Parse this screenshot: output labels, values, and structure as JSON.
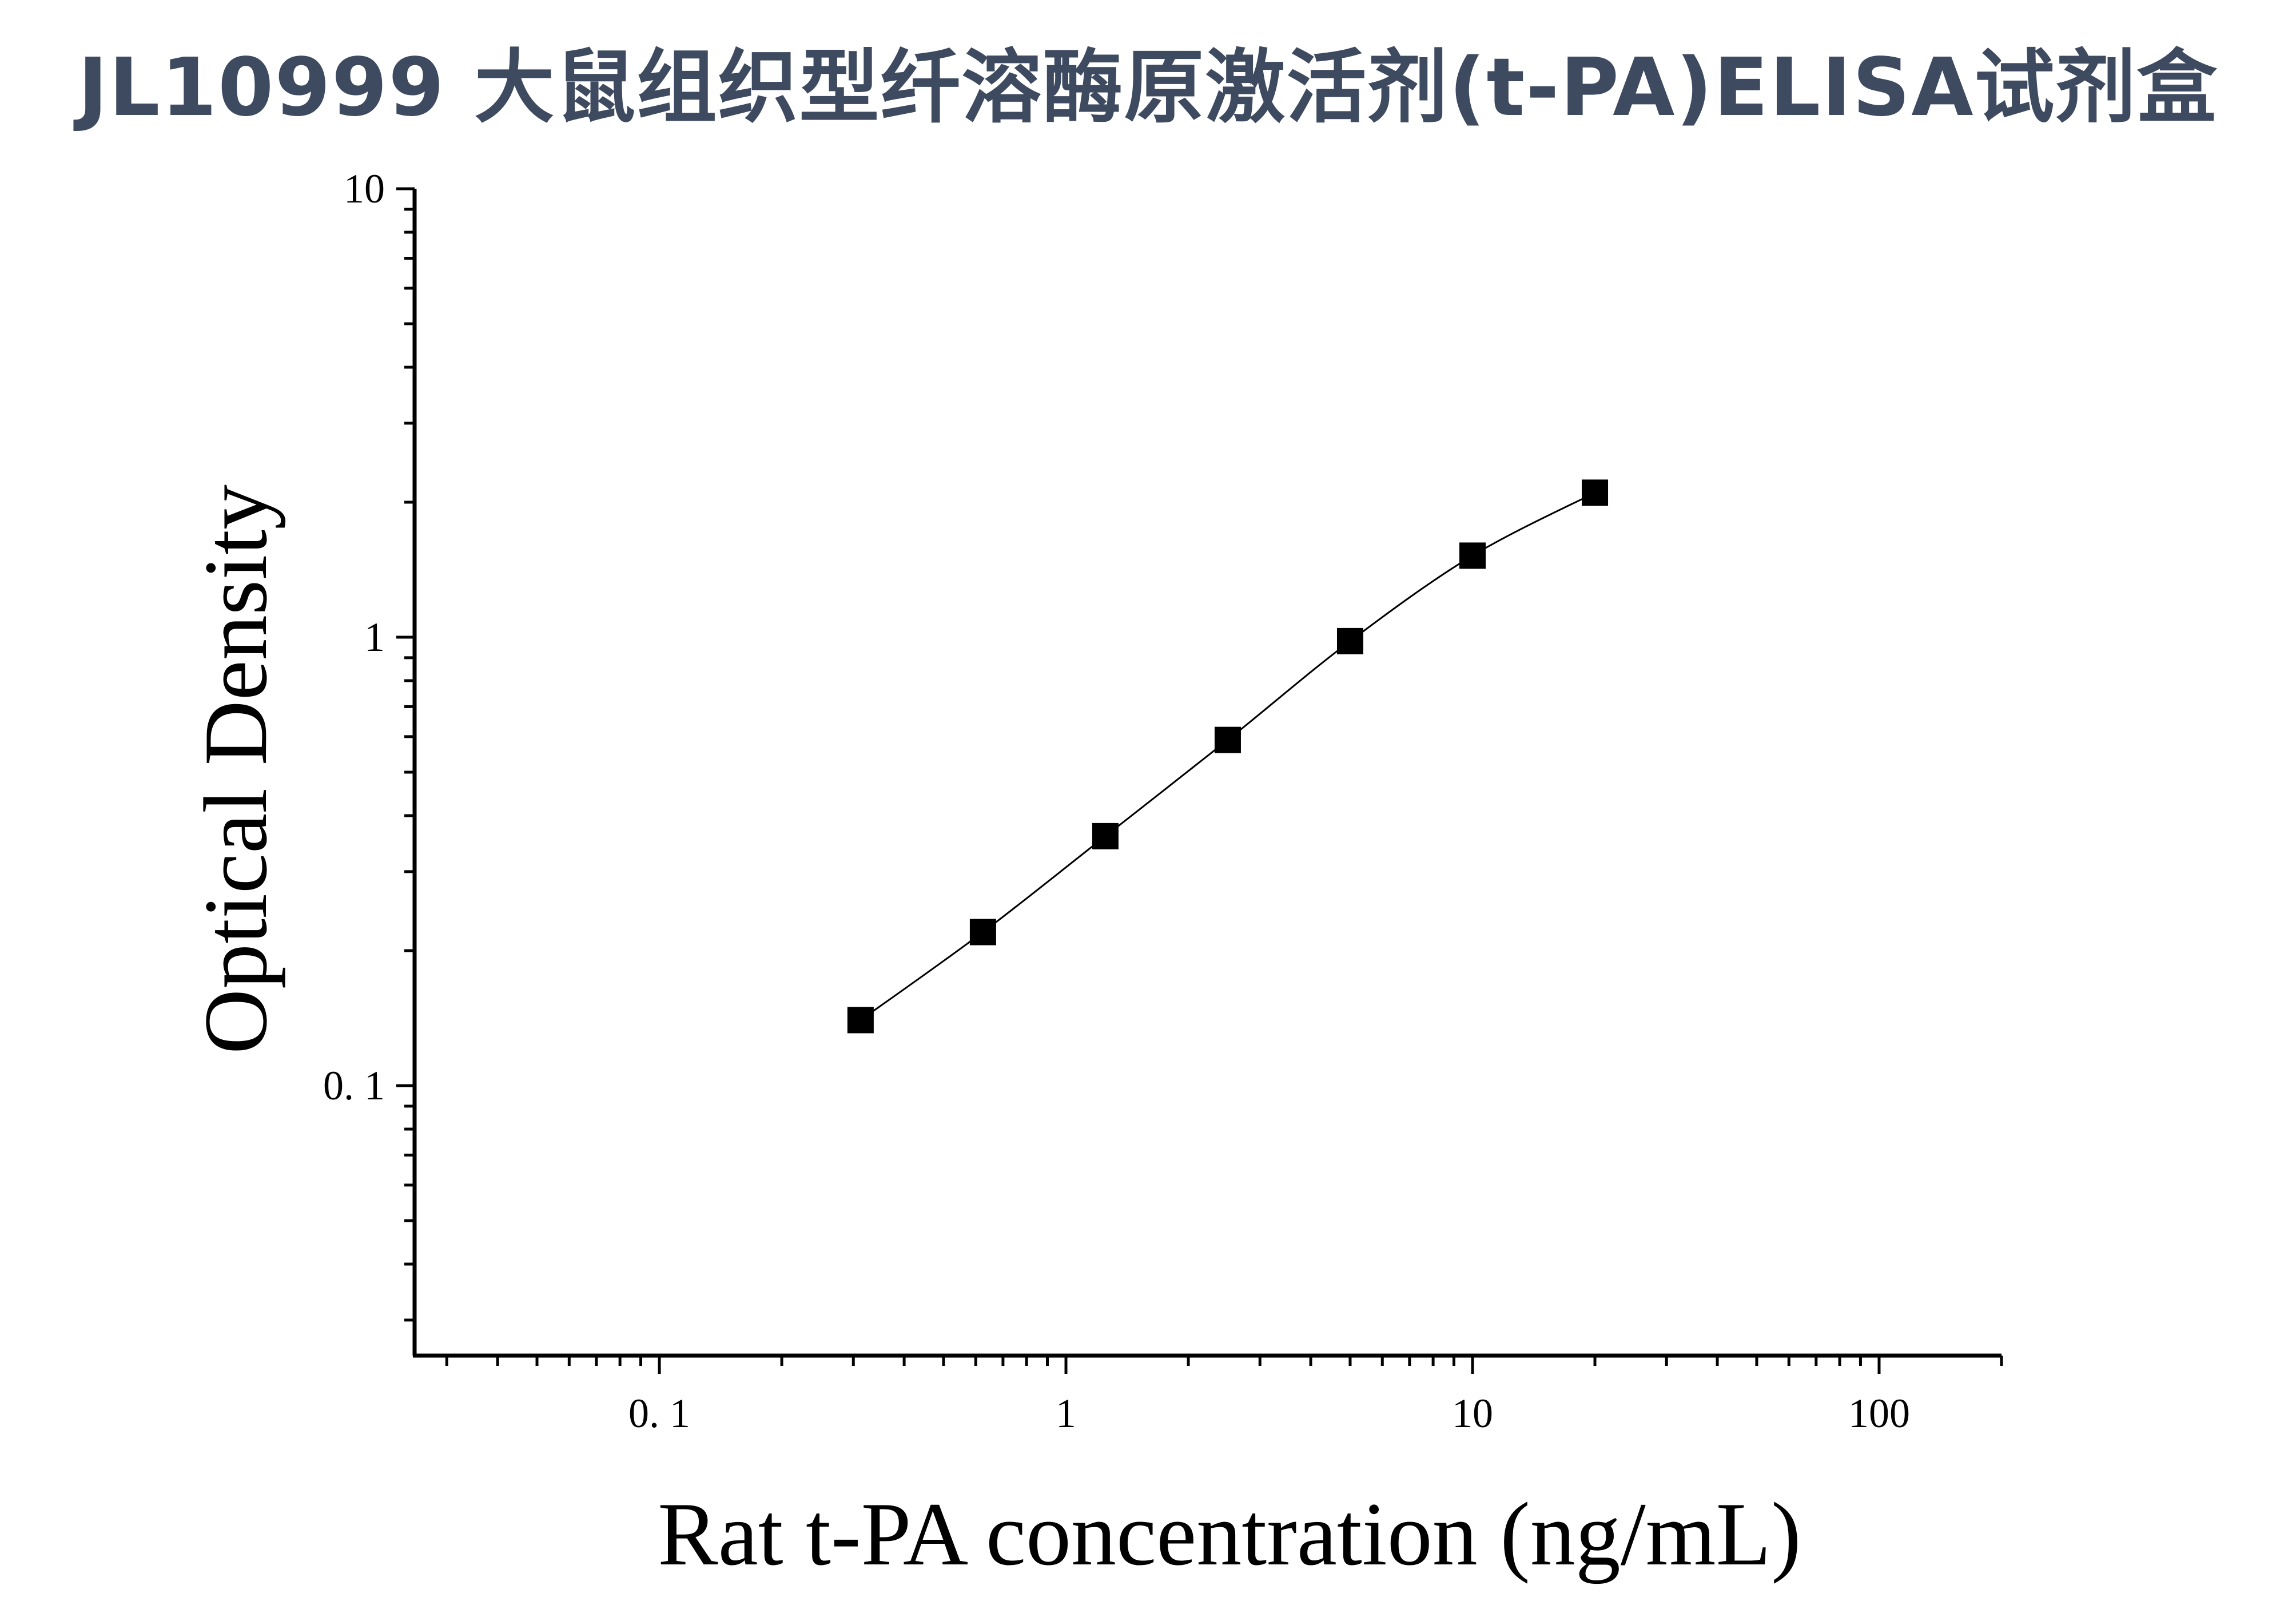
{
  "title": "JL10999 大鼠组织型纤溶酶原激活剂(t-PA)ELISA试剂盒",
  "chart_data": {
    "type": "scatter",
    "title": "JL10999 大鼠组织型纤溶酶原激活剂(t-PA)ELISA试剂盒",
    "xlabel": "Rat t-PA concentration (ng/mL)",
    "ylabel": "Optical Density",
    "xscale": "log",
    "yscale": "log",
    "xlim": [
      0.025,
      200
    ],
    "ylim": [
      0.025,
      10
    ],
    "xticks": [
      0.1,
      1,
      10,
      100
    ],
    "xtick_labels": [
      "0. 1",
      "1",
      "10",
      "100"
    ],
    "yticks": [
      0.1,
      1,
      10
    ],
    "ytick_labels": [
      "0. 1",
      "1",
      "10"
    ],
    "grid": false,
    "fit_curve": true,
    "marker": "square",
    "marker_color": "#000000",
    "x": [
      0.3125,
      0.625,
      1.25,
      2.5,
      5,
      10,
      20
    ],
    "y": [
      0.14,
      0.22,
      0.36,
      0.59,
      0.98,
      1.52,
      2.1
    ]
  }
}
